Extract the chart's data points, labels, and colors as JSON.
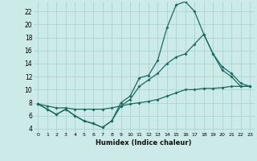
{
  "xlabel": "Humidex (Indice chaleur)",
  "background_color": "#cceae7",
  "grid_color": "#aad4d0",
  "line_color": "#1a6b60",
  "ylim": [
    3.5,
    23.5
  ],
  "xlim": [
    -0.5,
    23.5
  ],
  "yticks": [
    4,
    6,
    8,
    10,
    12,
    14,
    16,
    18,
    20,
    22
  ],
  "xticks": [
    0,
    1,
    2,
    3,
    4,
    5,
    6,
    7,
    8,
    9,
    10,
    11,
    12,
    13,
    14,
    15,
    16,
    17,
    18,
    19,
    20,
    21,
    22,
    23
  ],
  "line1_x": [
    0,
    1,
    2,
    3,
    4,
    5,
    6,
    7,
    8,
    9,
    10,
    11,
    12,
    13,
    14,
    15,
    16,
    17,
    18,
    19,
    20,
    21,
    22,
    23
  ],
  "line1_y": [
    7.8,
    7.0,
    6.2,
    7.0,
    6.0,
    5.2,
    4.8,
    4.2,
    5.2,
    8.0,
    9.0,
    11.8,
    12.2,
    14.5,
    19.5,
    23.0,
    23.5,
    22.0,
    18.5,
    15.5,
    13.0,
    12.0,
    10.5,
    10.5
  ],
  "line2_x": [
    0,
    1,
    2,
    3,
    4,
    5,
    6,
    7,
    8,
    9,
    10,
    11,
    12,
    13,
    14,
    15,
    16,
    17,
    18,
    19,
    20,
    21,
    22,
    23
  ],
  "line2_y": [
    7.8,
    7.0,
    6.2,
    7.0,
    6.0,
    5.2,
    4.8,
    4.2,
    5.2,
    7.5,
    8.5,
    10.5,
    11.5,
    12.5,
    14.0,
    15.0,
    15.5,
    17.0,
    18.5,
    15.5,
    13.5,
    12.5,
    11.0,
    10.5
  ],
  "line3_x": [
    0,
    1,
    2,
    3,
    4,
    5,
    6,
    7,
    8,
    9,
    10,
    11,
    12,
    13,
    14,
    15,
    16,
    17,
    18,
    19,
    20,
    21,
    22,
    23
  ],
  "line3_y": [
    7.8,
    7.5,
    7.2,
    7.2,
    7.0,
    7.0,
    7.0,
    7.0,
    7.2,
    7.5,
    7.8,
    8.0,
    8.2,
    8.5,
    9.0,
    9.5,
    10.0,
    10.0,
    10.2,
    10.2,
    10.3,
    10.5,
    10.5,
    10.5
  ]
}
